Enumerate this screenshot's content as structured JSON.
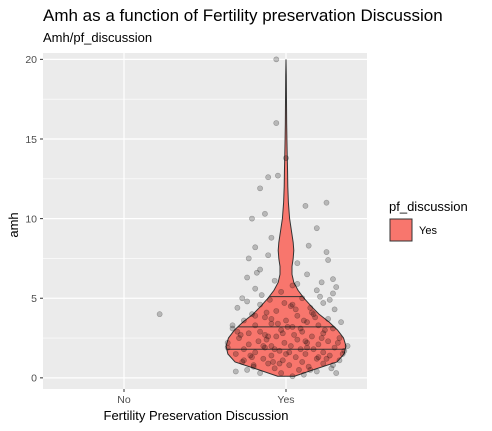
{
  "chart_data": {
    "type": "violin",
    "title": "Amh as a function of Fertility preservation Discussion",
    "subtitle": "Amh/pf_discussion",
    "xlabel": "Fertility Preservation Discussion",
    "ylabel": "amh",
    "categories": [
      "No",
      "Yes"
    ],
    "ylim": [
      -0.7,
      20.4
    ],
    "yticks": [
      0,
      5,
      10,
      15,
      20
    ],
    "grid": true,
    "legend": {
      "title": "pf_discussion",
      "entries": [
        "Yes"
      ],
      "position": "right"
    },
    "colors": {
      "fill": "#f8766d",
      "outline": "#333333",
      "panel": "#ebebeb",
      "grid": "#ffffff",
      "points": "#000000"
    },
    "violin": {
      "category": "Yes",
      "quantiles": [
        1.8,
        3.2,
        5.1
      ],
      "profile": [
        [
          0.1,
          0.14
        ],
        [
          0.5,
          0.45
        ],
        [
          1.0,
          0.85
        ],
        [
          1.5,
          0.97
        ],
        [
          2.0,
          1.0
        ],
        [
          2.5,
          0.96
        ],
        [
          3.0,
          0.86
        ],
        [
          3.5,
          0.72
        ],
        [
          4.0,
          0.55
        ],
        [
          4.5,
          0.42
        ],
        [
          5.0,
          0.3
        ],
        [
          5.5,
          0.2
        ],
        [
          6.0,
          0.13
        ],
        [
          6.5,
          0.1
        ],
        [
          7.0,
          0.1
        ],
        [
          7.5,
          0.12
        ],
        [
          8.0,
          0.13
        ],
        [
          8.5,
          0.12
        ],
        [
          9.0,
          0.1
        ],
        [
          9.5,
          0.08
        ],
        [
          10.0,
          0.06
        ],
        [
          11.0,
          0.04
        ],
        [
          12.0,
          0.03
        ],
        [
          13.0,
          0.026
        ],
        [
          14.0,
          0.02
        ],
        [
          15.0,
          0.015
        ],
        [
          16.0,
          0.011
        ],
        [
          17.0,
          0.009
        ],
        [
          18.0,
          0.007
        ],
        [
          19.0,
          0.005
        ],
        [
          20.0,
          0.0
        ]
      ]
    },
    "points": [
      {
        "x": "No",
        "jitter": 0.22,
        "y": 4.0
      },
      {
        "x": "Yes",
        "jitter": -0.06,
        "y": 20.0
      },
      {
        "x": "Yes",
        "jitter": -0.06,
        "y": 16.0
      },
      {
        "x": "Yes",
        "jitter": -0.11,
        "y": 12.6
      },
      {
        "x": "Yes",
        "jitter": -0.05,
        "y": 12.7
      },
      {
        "x": "Yes",
        "jitter": 0.0,
        "y": 13.8
      },
      {
        "x": "Yes",
        "jitter": -0.16,
        "y": 11.9
      },
      {
        "x": "Yes",
        "jitter": 0.25,
        "y": 11.0
      },
      {
        "x": "Yes",
        "jitter": -0.13,
        "y": 10.3
      },
      {
        "x": "Yes",
        "jitter": 0.12,
        "y": 10.8
      },
      {
        "x": "Yes",
        "jitter": -0.21,
        "y": 10.0
      },
      {
        "x": "Yes",
        "jitter": 0.19,
        "y": 9.4
      },
      {
        "x": "Yes",
        "jitter": -0.09,
        "y": 8.8
      },
      {
        "x": "Yes",
        "jitter": -0.19,
        "y": 8.2
      },
      {
        "x": "Yes",
        "jitter": 0.14,
        "y": 8.3
      },
      {
        "x": "Yes",
        "jitter": -0.11,
        "y": 7.7
      },
      {
        "x": "Yes",
        "jitter": 0.25,
        "y": 7.9
      },
      {
        "x": "Yes",
        "jitter": 0.07,
        "y": 7.2
      },
      {
        "x": "Yes",
        "jitter": -0.23,
        "y": 7.5
      },
      {
        "x": "Yes",
        "jitter": 0.26,
        "y": 7.4
      },
      {
        "x": "Yes",
        "jitter": -0.16,
        "y": 6.8
      },
      {
        "x": "Yes",
        "jitter": 0.13,
        "y": 6.5
      },
      {
        "x": "Yes",
        "jitter": 0.29,
        "y": 6.2
      },
      {
        "x": "Yes",
        "jitter": -0.24,
        "y": 6.3
      },
      {
        "x": "Yes",
        "jitter": 0.22,
        "y": 6.0
      },
      {
        "x": "Yes",
        "jitter": -0.07,
        "y": 6.1
      },
      {
        "x": "Yes",
        "jitter": 0.04,
        "y": 5.8
      },
      {
        "x": "Yes",
        "jitter": -0.19,
        "y": 5.6
      },
      {
        "x": "Yes",
        "jitter": 0.19,
        "y": 5.5
      },
      {
        "x": "Yes",
        "jitter": -0.03,
        "y": 5.4
      },
      {
        "x": "Yes",
        "jitter": 0.29,
        "y": 5.3
      },
      {
        "x": "Yes",
        "jitter": -0.27,
        "y": 5.0
      },
      {
        "x": "Yes",
        "jitter": 0.1,
        "y": 5.0
      },
      {
        "x": "Yes",
        "jitter": -0.1,
        "y": 4.9
      },
      {
        "x": "Yes",
        "jitter": 0.23,
        "y": 4.7
      },
      {
        "x": "Yes",
        "jitter": -0.16,
        "y": 4.6
      },
      {
        "x": "Yes",
        "jitter": 0.03,
        "y": 4.5
      },
      {
        "x": "Yes",
        "jitter": -0.3,
        "y": 4.4
      },
      {
        "x": "Yes",
        "jitter": 0.3,
        "y": 4.3
      },
      {
        "x": "Yes",
        "jitter": -0.06,
        "y": 4.2
      },
      {
        "x": "Yes",
        "jitter": 0.16,
        "y": 4.1
      },
      {
        "x": "Yes",
        "jitter": -0.21,
        "y": 4.0
      },
      {
        "x": "Yes",
        "jitter": 0.07,
        "y": 3.9
      },
      {
        "x": "Yes",
        "jitter": -0.13,
        "y": 3.8
      },
      {
        "x": "Yes",
        "jitter": 0.26,
        "y": 3.7
      },
      {
        "x": "Yes",
        "jitter": -0.26,
        "y": 3.6
      },
      {
        "x": "Yes",
        "jitter": 0.0,
        "y": 3.6
      },
      {
        "x": "Yes",
        "jitter": 0.13,
        "y": 3.5
      },
      {
        "x": "Yes",
        "jitter": -0.09,
        "y": 3.4
      },
      {
        "x": "Yes",
        "jitter": 0.2,
        "y": 3.3
      },
      {
        "x": "Yes",
        "jitter": -0.19,
        "y": 3.3
      },
      {
        "x": "Yes",
        "jitter": 0.04,
        "y": 3.2
      },
      {
        "x": "Yes",
        "jitter": -0.33,
        "y": 3.1
      },
      {
        "x": "Yes",
        "jitter": 0.29,
        "y": 3.1
      },
      {
        "x": "Yes",
        "jitter": -0.03,
        "y": 3.0
      },
      {
        "x": "Yes",
        "jitter": 0.1,
        "y": 2.9
      },
      {
        "x": "Yes",
        "jitter": -0.23,
        "y": 2.8
      },
      {
        "x": "Yes",
        "jitter": 0.23,
        "y": 2.8
      },
      {
        "x": "Yes",
        "jitter": -0.13,
        "y": 2.7
      },
      {
        "x": "Yes",
        "jitter": 0.16,
        "y": 2.6
      },
      {
        "x": "Yes",
        "jitter": -0.06,
        "y": 2.6
      },
      {
        "x": "Yes",
        "jitter": 0.33,
        "y": 2.5
      },
      {
        "x": "Yes",
        "jitter": -0.29,
        "y": 2.5
      },
      {
        "x": "Yes",
        "jitter": 0.07,
        "y": 2.4
      },
      {
        "x": "Yes",
        "jitter": -0.17,
        "y": 2.3
      },
      {
        "x": "Yes",
        "jitter": 0.26,
        "y": 2.3
      },
      {
        "x": "Yes",
        "jitter": -0.01,
        "y": 2.2
      },
      {
        "x": "Yes",
        "jitter": 0.13,
        "y": 2.2
      },
      {
        "x": "Yes",
        "jitter": -0.23,
        "y": 2.1
      },
      {
        "x": "Yes",
        "jitter": 0.2,
        "y": 2.1
      },
      {
        "x": "Yes",
        "jitter": -0.09,
        "y": 2.0
      },
      {
        "x": "Yes",
        "jitter": 0.03,
        "y": 2.0
      },
      {
        "x": "Yes",
        "jitter": -0.36,
        "y": 1.9
      },
      {
        "x": "Yes",
        "jitter": 0.3,
        "y": 1.9
      },
      {
        "x": "Yes",
        "jitter": -0.13,
        "y": 1.9
      },
      {
        "x": "Yes",
        "jitter": 0.09,
        "y": 1.8
      },
      {
        "x": "Yes",
        "jitter": -0.26,
        "y": 1.8
      },
      {
        "x": "Yes",
        "jitter": 0.17,
        "y": 1.8
      },
      {
        "x": "Yes",
        "jitter": -0.04,
        "y": 1.7
      },
      {
        "x": "Yes",
        "jitter": 0.36,
        "y": 1.7
      },
      {
        "x": "Yes",
        "jitter": -0.19,
        "y": 1.6
      },
      {
        "x": "Yes",
        "jitter": 0.23,
        "y": 1.6
      },
      {
        "x": "Yes",
        "jitter": 0.0,
        "y": 1.5
      },
      {
        "x": "Yes",
        "jitter": -0.31,
        "y": 1.5
      },
      {
        "x": "Yes",
        "jitter": 0.12,
        "y": 1.5
      },
      {
        "x": "Yes",
        "jitter": -0.09,
        "y": 1.4
      },
      {
        "x": "Yes",
        "jitter": 0.27,
        "y": 1.4
      },
      {
        "x": "Yes",
        "jitter": -0.21,
        "y": 1.3
      },
      {
        "x": "Yes",
        "jitter": 0.06,
        "y": 1.3
      },
      {
        "x": "Yes",
        "jitter": -0.14,
        "y": 1.2
      },
      {
        "x": "Yes",
        "jitter": 0.19,
        "y": 1.2
      },
      {
        "x": "Yes",
        "jitter": -0.02,
        "y": 1.1
      },
      {
        "x": "Yes",
        "jitter": 0.33,
        "y": 1.1
      },
      {
        "x": "Yes",
        "jitter": -0.27,
        "y": 1.0
      },
      {
        "x": "Yes",
        "jitter": 0.1,
        "y": 1.0
      },
      {
        "x": "Yes",
        "jitter": -0.11,
        "y": 0.9
      },
      {
        "x": "Yes",
        "jitter": 0.23,
        "y": 0.9
      },
      {
        "x": "Yes",
        "jitter": -0.2,
        "y": 0.8
      },
      {
        "x": "Yes",
        "jitter": 0.02,
        "y": 0.8
      },
      {
        "x": "Yes",
        "jitter": 0.14,
        "y": 0.7
      },
      {
        "x": "Yes",
        "jitter": -0.07,
        "y": 0.6
      },
      {
        "x": "Yes",
        "jitter": 0.28,
        "y": 0.6
      },
      {
        "x": "Yes",
        "jitter": -0.24,
        "y": 0.5
      },
      {
        "x": "Yes",
        "jitter": 0.08,
        "y": 0.5
      },
      {
        "x": "Yes",
        "jitter": 0.19,
        "y": 0.4
      },
      {
        "x": "Yes",
        "jitter": -0.03,
        "y": 0.3
      },
      {
        "x": "Yes",
        "jitter": -0.16,
        "y": 0.3
      },
      {
        "x": "Yes",
        "jitter": 0.11,
        "y": 0.2
      },
      {
        "x": "Yes",
        "jitter": 0.31,
        "y": 0.3
      },
      {
        "x": "Yes",
        "jitter": 0.04,
        "y": 0.1
      },
      {
        "x": "Yes",
        "jitter": -0.31,
        "y": 0.4
      },
      {
        "x": "Yes",
        "jitter": 0.24,
        "y": 3.0
      },
      {
        "x": "Yes",
        "jitter": -0.12,
        "y": 2.4
      },
      {
        "x": "Yes",
        "jitter": 0.05,
        "y": 2.7
      },
      {
        "x": "Yes",
        "jitter": -0.36,
        "y": 2.2
      },
      {
        "x": "Yes",
        "jitter": 0.38,
        "y": 2.0
      },
      {
        "x": "Yes",
        "jitter": -0.05,
        "y": 3.4
      },
      {
        "x": "Yes",
        "jitter": 0.15,
        "y": 4.4
      },
      {
        "x": "Yes",
        "jitter": -0.24,
        "y": 4.8
      },
      {
        "x": "Yes",
        "jitter": 0.31,
        "y": 5.7
      },
      {
        "x": "Yes",
        "jitter": -0.01,
        "y": 4.7
      },
      {
        "x": "Yes",
        "jitter": 0.09,
        "y": 3.1
      },
      {
        "x": "Yes",
        "jitter": -0.16,
        "y": 2.9
      },
      {
        "x": "Yes",
        "jitter": 0.2,
        "y": 1.3
      },
      {
        "x": "Yes",
        "jitter": -0.26,
        "y": 1.1
      },
      {
        "x": "Yes",
        "jitter": 0.35,
        "y": 1.5
      },
      {
        "x": "Yes",
        "jitter": -0.07,
        "y": 1.8
      },
      {
        "x": "Yes",
        "jitter": 0.12,
        "y": 2.3
      },
      {
        "x": "Yes",
        "jitter": -0.19,
        "y": 3.9
      },
      {
        "x": "Yes",
        "jitter": 0.27,
        "y": 4.9
      },
      {
        "x": "Yes",
        "jitter": -0.33,
        "y": 3.3
      },
      {
        "x": "Yes",
        "jitter": 0.02,
        "y": 1.6
      },
      {
        "x": "Yes",
        "jitter": -0.11,
        "y": 2.6
      },
      {
        "x": "Yes",
        "jitter": 0.18,
        "y": 3.8
      },
      {
        "x": "Yes",
        "jitter": -0.28,
        "y": 2.7
      },
      {
        "x": "Yes",
        "jitter": 0.06,
        "y": 4.3
      },
      {
        "x": "Yes",
        "jitter": 0.34,
        "y": 3.5
      },
      {
        "x": "Yes",
        "jitter": -0.15,
        "y": 5.2
      },
      {
        "x": "Yes",
        "jitter": 0.22,
        "y": 2.5
      },
      {
        "x": "Yes",
        "jitter": -0.04,
        "y": 0.9
      },
      {
        "x": "Yes",
        "jitter": 0.13,
        "y": 1.9
      },
      {
        "x": "Yes",
        "jitter": -0.22,
        "y": 1.4
      },
      {
        "x": "Yes",
        "jitter": 0.29,
        "y": 0.8
      },
      {
        "x": "Yes",
        "jitter": -0.09,
        "y": 3.7
      },
      {
        "x": "Yes",
        "jitter": 0.07,
        "y": 5.9
      },
      {
        "x": "Yes",
        "jitter": -0.18,
        "y": 6.6
      },
      {
        "x": "Yes",
        "jitter": 0.17,
        "y": 4.0
      },
      {
        "x": "Yes",
        "jitter": -0.02,
        "y": 2.8
      },
      {
        "x": "Yes",
        "jitter": 0.25,
        "y": 1.2
      },
      {
        "x": "Yes",
        "jitter": -0.3,
        "y": 2.9
      },
      {
        "x": "Yes",
        "jitter": 0.11,
        "y": 3.6
      },
      {
        "x": "Yes",
        "jitter": -0.14,
        "y": 2.0
      },
      {
        "x": "Yes",
        "jitter": 0.04,
        "y": 4.6
      },
      {
        "x": "Yes",
        "jitter": 0.21,
        "y": 5.1
      },
      {
        "x": "Yes",
        "jitter": -0.08,
        "y": 1.0
      },
      {
        "x": "Yes",
        "jitter": 0.32,
        "y": 2.2
      },
      {
        "x": "Yes",
        "jitter": -0.2,
        "y": 0.7
      },
      {
        "x": "Yes",
        "jitter": 0.01,
        "y": 3.2
      },
      {
        "x": "Yes",
        "jitter": -0.12,
        "y": 4.1
      },
      {
        "x": "Yes",
        "jitter": 0.15,
        "y": 0.5
      }
    ]
  }
}
